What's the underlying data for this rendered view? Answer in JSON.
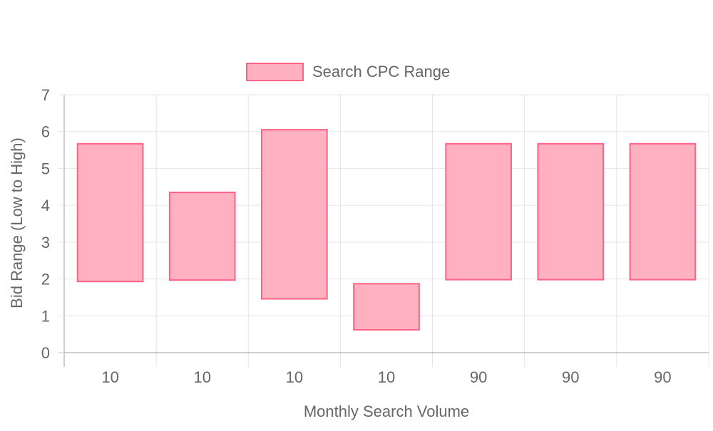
{
  "chart_data": {
    "type": "bar",
    "categories": [
      "10",
      "10",
      "10",
      "10",
      "90",
      "90",
      "90"
    ],
    "series": [
      {
        "name": "Search CPC Range",
        "ranges": [
          [
            1.93,
            5.67
          ],
          [
            1.97,
            4.35
          ],
          [
            1.46,
            6.05
          ],
          [
            0.62,
            1.87
          ],
          [
            1.98,
            5.67
          ],
          [
            1.98,
            5.67
          ],
          [
            1.98,
            5.67
          ]
        ]
      }
    ],
    "title": "",
    "xlabel": "Monthly Search Volume",
    "ylabel": "Bid Range (Low to High)",
    "ylim": [
      0,
      7
    ],
    "yticks": [
      "0",
      "1",
      "2",
      "3",
      "4",
      "5",
      "6",
      "7"
    ],
    "grid": true,
    "legend_position": "top",
    "colors": {
      "bar_fill": "#ffb1c1",
      "bar_stroke": "#ff6384",
      "grid": "#e5e5e5",
      "axis": "#bdbdbd",
      "text": "#666666"
    }
  }
}
